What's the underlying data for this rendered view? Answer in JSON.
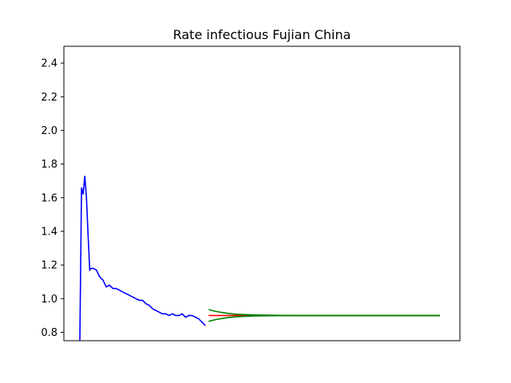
{
  "chart_data": {
    "type": "line",
    "title": "Rate infectious Fujian China",
    "xlabel": "",
    "ylabel": "",
    "ylim": [
      0.75,
      2.5
    ],
    "xlim": [
      0,
      110
    ],
    "x_ticks_shown": false,
    "y_ticks": [
      0.8,
      1.0,
      1.2,
      1.4,
      1.6,
      1.8,
      2.0,
      2.2,
      2.4
    ],
    "y_tick_labels": [
      "0.8",
      "1.0",
      "1.2",
      "1.4",
      "1.6",
      "1.8",
      "2.0",
      "2.2",
      "2.4"
    ],
    "grid": false,
    "legend": "none",
    "series": [
      {
        "color": "#0000ff",
        "x": [
          0,
          0.5,
          1,
          1.5,
          2,
          2.5,
          3,
          3.5,
          4,
          5,
          6,
          7,
          8,
          9,
          10,
          11,
          12,
          13,
          14,
          15,
          16,
          17,
          18,
          19,
          20,
          21,
          22,
          23,
          24,
          25,
          26,
          27,
          28,
          29,
          30,
          31,
          32,
          33,
          34,
          35,
          36,
          37,
          38
        ],
        "values": [
          0.75,
          1.66,
          1.62,
          1.73,
          1.6,
          1.38,
          1.17,
          1.18,
          1.18,
          1.17,
          1.13,
          1.11,
          1.07,
          1.08,
          1.06,
          1.06,
          1.05,
          1.04,
          1.03,
          1.02,
          1.01,
          1.0,
          0.99,
          0.99,
          0.97,
          0.96,
          0.94,
          0.93,
          0.92,
          0.91,
          0.91,
          0.9,
          0.91,
          0.9,
          0.9,
          0.91,
          0.89,
          0.9,
          0.9,
          0.89,
          0.88,
          0.86,
          0.84
        ]
      },
      {
        "color": "#ff0000",
        "x": [
          39,
          50,
          60,
          70,
          80,
          90,
          100,
          109
        ],
        "values": [
          0.9,
          0.9,
          0.9,
          0.9,
          0.9,
          0.9,
          0.9,
          0.9
        ]
      },
      {
        "color": "#008000",
        "x": [
          39,
          41,
          43,
          45,
          47,
          50,
          53,
          56,
          60,
          65,
          70,
          80,
          90,
          100,
          109
        ],
        "values": [
          0.935,
          0.925,
          0.918,
          0.912,
          0.908,
          0.905,
          0.903,
          0.902,
          0.901,
          0.9,
          0.9,
          0.9,
          0.9,
          0.9,
          0.9
        ]
      },
      {
        "color": "#008000",
        "x": [
          39,
          41,
          43,
          45,
          47,
          50,
          53,
          56,
          60,
          65,
          70,
          80,
          90,
          100,
          109
        ],
        "values": [
          0.865,
          0.875,
          0.882,
          0.888,
          0.892,
          0.895,
          0.897,
          0.898,
          0.899,
          0.9,
          0.9,
          0.9,
          0.9,
          0.9,
          0.9
        ]
      }
    ]
  }
}
